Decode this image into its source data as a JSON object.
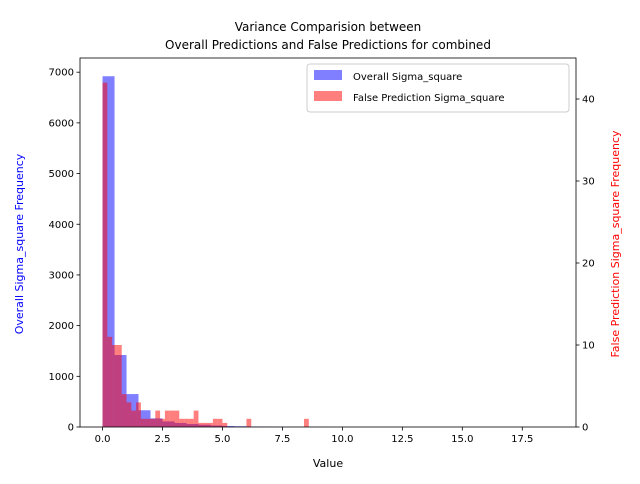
{
  "chart_data": {
    "type": "bar",
    "title_lines": [
      "Variance Comparision between",
      "Overall Predictions and False Predictions for combined"
    ],
    "xlabel": "Value",
    "ylabel_left": "Overall Sigma_square Frequency",
    "ylabel_right": "False Prediction Sigma_square Frequency",
    "xlim": [
      -0.94,
      19.74
    ],
    "ylim_left": [
      0,
      7280
    ],
    "ylim_right": [
      0,
      45
    ],
    "x_ticks": [
      0.0,
      2.5,
      5.0,
      7.5,
      10.0,
      12.5,
      15.0,
      17.5
    ],
    "x_tick_labels": [
      "0.0",
      "2.5",
      "5.0",
      "7.5",
      "10.0",
      "12.5",
      "15.0",
      "17.5"
    ],
    "y_left_ticks": [
      0,
      1000,
      2000,
      3000,
      4000,
      5000,
      6000,
      7000
    ],
    "y_left_tick_labels": [
      "0",
      "1000",
      "2000",
      "3000",
      "4000",
      "5000",
      "6000",
      "7000"
    ],
    "y_right_ticks": [
      0,
      10,
      20,
      30,
      40
    ],
    "y_right_tick_labels": [
      "0",
      "10",
      "20",
      "30",
      "40"
    ],
    "legend_position": "upper right",
    "series": [
      {
        "name": "Overall Sigma_square",
        "axis": "left",
        "color": "#0000ff",
        "opacity": 0.5,
        "bin_width": 0.5,
        "bins": [
          [
            0.0,
            6920
          ],
          [
            0.5,
            1420
          ],
          [
            1.0,
            650
          ],
          [
            1.5,
            330
          ],
          [
            2.0,
            170
          ],
          [
            2.5,
            110
          ],
          [
            3.0,
            80
          ],
          [
            3.5,
            60
          ],
          [
            4.0,
            45
          ],
          [
            4.5,
            30
          ],
          [
            5.0,
            20
          ],
          [
            5.5,
            15
          ],
          [
            6.0,
            10
          ],
          [
            6.5,
            8
          ],
          [
            7.0,
            6
          ],
          [
            7.5,
            4
          ],
          [
            8.0,
            3
          ],
          [
            8.5,
            2
          ],
          [
            9.0,
            2
          ],
          [
            9.5,
            1
          ],
          [
            10.0,
            1
          ],
          [
            10.5,
            1
          ],
          [
            11.0,
            1
          ],
          [
            11.5,
            1
          ],
          [
            12.0,
            1
          ],
          [
            12.5,
            1
          ],
          [
            13.0,
            1
          ],
          [
            13.5,
            1
          ],
          [
            14.0,
            1
          ],
          [
            14.5,
            1
          ],
          [
            15.0,
            1
          ],
          [
            15.5,
            1
          ],
          [
            16.0,
            1
          ],
          [
            16.5,
            1
          ],
          [
            17.0,
            1
          ],
          [
            17.5,
            1
          ],
          [
            18.0,
            1
          ],
          [
            18.5,
            1
          ]
        ]
      },
      {
        "name": "False Prediction Sigma_square",
        "axis": "right",
        "color": "#ff0000",
        "opacity": 0.5,
        "bin_width": 0.2,
        "bins": [
          [
            0.0,
            42
          ],
          [
            0.2,
            11
          ],
          [
            0.4,
            10
          ],
          [
            0.6,
            10
          ],
          [
            0.8,
            4
          ],
          [
            1.0,
            3
          ],
          [
            1.2,
            2
          ],
          [
            1.4,
            3
          ],
          [
            1.6,
            1
          ],
          [
            1.8,
            1
          ],
          [
            2.0,
            1
          ],
          [
            2.2,
            2
          ],
          [
            2.4,
            1
          ],
          [
            2.6,
            2
          ],
          [
            2.8,
            2
          ],
          [
            3.0,
            2
          ],
          [
            3.2,
            1
          ],
          [
            3.4,
            1
          ],
          [
            3.6,
            1
          ],
          [
            3.8,
            2
          ],
          [
            4.0,
            0.5
          ],
          [
            4.2,
            0.5
          ],
          [
            4.4,
            0.5
          ],
          [
            4.6,
            1
          ],
          [
            4.8,
            1
          ],
          [
            5.0,
            0.5
          ],
          [
            6.0,
            1
          ],
          [
            8.4,
            1
          ]
        ]
      }
    ]
  }
}
